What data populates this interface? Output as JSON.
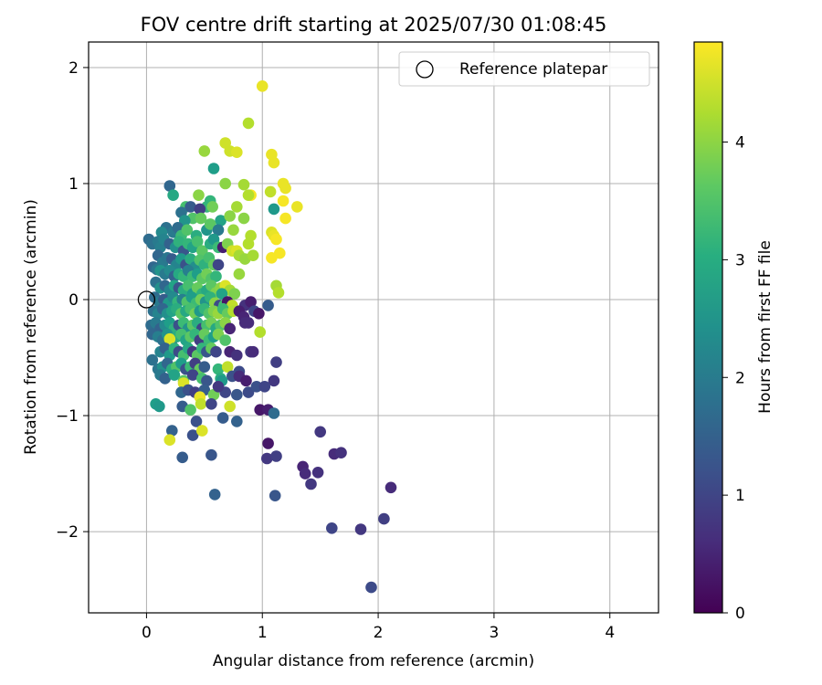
{
  "chart_data": {
    "type": "scatter",
    "title": "FOV centre drift starting at 2025/07/30 01:08:45",
    "xlabel": "Angular distance from reference (arcmin)",
    "ylabel": "Rotation from reference (arcmin)",
    "xlim": [
      -0.5,
      4.42
    ],
    "ylim": [
      -2.7,
      2.22
    ],
    "xticks": [
      0,
      1,
      2,
      3,
      4
    ],
    "xtick_labels": [
      "0",
      "1",
      "2",
      "3",
      "4"
    ],
    "yticks": [
      2,
      1,
      0,
      -1,
      -2
    ],
    "ytick_labels": [
      "2",
      "1",
      "0",
      "−1",
      "−2"
    ],
    "grid": true,
    "legend": {
      "placement": "top-right",
      "entries": [
        "Reference platepar"
      ]
    },
    "reference_point": {
      "name": "Reference platepar",
      "x": 0,
      "y": 0
    },
    "colorbar": {
      "label": "Hours from first FF file",
      "colormap": "viridis",
      "range": [
        0,
        4.85
      ],
      "ticks": [
        0,
        1,
        2,
        3,
        4
      ],
      "tick_labels": [
        "0",
        "1",
        "2",
        "3",
        "4"
      ]
    },
    "points": [
      [
        1.0,
        1.84,
        4.7
      ],
      [
        0.88,
        1.52,
        4.3
      ],
      [
        0.68,
        1.35,
        4.5
      ],
      [
        0.5,
        1.28,
        4.1
      ],
      [
        0.72,
        1.28,
        4.5
      ],
      [
        0.78,
        1.27,
        4.6
      ],
      [
        1.08,
        1.25,
        4.7
      ],
      [
        1.1,
        1.18,
        4.7
      ],
      [
        0.58,
        1.13,
        2.7
      ],
      [
        0.52,
        0.8,
        3.2
      ],
      [
        0.68,
        1.0,
        4.0
      ],
      [
        0.84,
        0.99,
        4.2
      ],
      [
        1.18,
        1.0,
        4.7
      ],
      [
        1.2,
        0.96,
        4.7
      ],
      [
        1.07,
        0.93,
        4.4
      ],
      [
        0.2,
        0.98,
        1.6
      ],
      [
        0.45,
        0.9,
        4.0
      ],
      [
        0.9,
        0.9,
        4.8
      ],
      [
        0.23,
        0.9,
        2.9
      ],
      [
        0.55,
        0.85,
        3.2
      ],
      [
        0.88,
        0.9,
        4.3
      ],
      [
        0.34,
        0.8,
        3.4
      ],
      [
        0.38,
        0.8,
        1.4
      ],
      [
        0.46,
        0.78,
        0.9
      ],
      [
        0.57,
        0.8,
        3.8
      ],
      [
        0.78,
        0.8,
        4.2
      ],
      [
        0.84,
        0.7,
        4.0
      ],
      [
        1.3,
        0.8,
        4.7
      ],
      [
        1.1,
        0.78,
        2.6
      ],
      [
        1.18,
        0.85,
        4.8
      ],
      [
        1.2,
        0.7,
        4.8
      ],
      [
        0.3,
        0.75,
        1.8
      ],
      [
        0.4,
        0.7,
        3.5
      ],
      [
        0.33,
        0.68,
        2.5
      ],
      [
        0.47,
        0.7,
        3.7
      ],
      [
        0.64,
        0.68,
        2.8
      ],
      [
        0.72,
        0.72,
        4.0
      ],
      [
        0.17,
        0.62,
        1.8
      ],
      [
        0.23,
        0.58,
        2.0
      ],
      [
        0.13,
        0.58,
        2.3
      ],
      [
        0.27,
        0.62,
        1.7
      ],
      [
        0.3,
        0.55,
        3.3
      ],
      [
        0.35,
        0.6,
        3.5
      ],
      [
        0.43,
        0.55,
        3.0
      ],
      [
        0.52,
        0.6,
        2.5
      ],
      [
        0.55,
        0.65,
        3.6
      ],
      [
        0.62,
        0.6,
        2.0
      ],
      [
        0.75,
        0.6,
        4.1
      ],
      [
        0.9,
        0.55,
        4.3
      ],
      [
        1.08,
        0.58,
        4.6
      ],
      [
        1.1,
        0.55,
        4.7
      ],
      [
        1.12,
        0.52,
        4.8
      ],
      [
        0.02,
        0.52,
        1.7
      ],
      [
        0.05,
        0.48,
        1.8
      ],
      [
        0.1,
        0.5,
        2.0
      ],
      [
        0.12,
        0.45,
        2.1
      ],
      [
        0.15,
        0.52,
        2.2
      ],
      [
        0.2,
        0.48,
        1.5
      ],
      [
        0.25,
        0.45,
        2.4
      ],
      [
        0.28,
        0.5,
        3.1
      ],
      [
        0.32,
        0.42,
        1.3
      ],
      [
        0.36,
        0.48,
        3.2
      ],
      [
        0.4,
        0.45,
        2.8
      ],
      [
        0.44,
        0.5,
        3.4
      ],
      [
        0.48,
        0.42,
        3.6
      ],
      [
        0.55,
        0.48,
        3.0
      ],
      [
        0.58,
        0.52,
        2.6
      ],
      [
        0.62,
        0.45,
        3.3
      ],
      [
        0.66,
        0.45,
        0.4
      ],
      [
        0.7,
        0.48,
        3.9
      ],
      [
        0.74,
        0.42,
        4.5
      ],
      [
        0.78,
        0.42,
        4.6
      ],
      [
        0.8,
        0.38,
        4.2
      ],
      [
        0.85,
        0.35,
        4.1
      ],
      [
        0.88,
        0.48,
        4.3
      ],
      [
        0.92,
        0.38,
        4.2
      ],
      [
        1.08,
        0.36,
        4.8
      ],
      [
        1.15,
        0.4,
        4.8
      ],
      [
        0.1,
        0.38,
        1.6
      ],
      [
        0.14,
        0.32,
        2.0
      ],
      [
        0.18,
        0.36,
        1.9
      ],
      [
        0.22,
        0.35,
        1.4
      ],
      [
        0.26,
        0.3,
        2.2
      ],
      [
        0.3,
        0.35,
        2.6
      ],
      [
        0.34,
        0.3,
        1.2
      ],
      [
        0.38,
        0.35,
        3.0
      ],
      [
        0.42,
        0.28,
        2.4
      ],
      [
        0.46,
        0.34,
        3.5
      ],
      [
        0.5,
        0.3,
        3.1
      ],
      [
        0.54,
        0.36,
        3.4
      ],
      [
        0.58,
        0.3,
        3.7
      ],
      [
        0.62,
        0.3,
        1.0
      ],
      [
        0.06,
        0.28,
        1.6
      ],
      [
        0.09,
        0.26,
        1.9
      ],
      [
        0.12,
        0.25,
        2.5
      ],
      [
        0.16,
        0.22,
        2.0
      ],
      [
        0.2,
        0.25,
        2.3
      ],
      [
        0.24,
        0.2,
        1.5
      ],
      [
        0.28,
        0.22,
        2.9
      ],
      [
        0.32,
        0.2,
        3.2
      ],
      [
        0.36,
        0.25,
        2.1
      ],
      [
        0.4,
        0.2,
        3.3
      ],
      [
        0.44,
        0.22,
        2.7
      ],
      [
        0.48,
        0.18,
        3.6
      ],
      [
        0.52,
        0.22,
        3.8
      ],
      [
        0.56,
        0.18,
        3.5
      ],
      [
        0.6,
        0.2,
        3.2
      ],
      [
        0.8,
        0.22,
        4.1
      ],
      [
        0.08,
        0.15,
        1.8
      ],
      [
        0.12,
        0.1,
        2.4
      ],
      [
        0.16,
        0.12,
        1.6
      ],
      [
        0.2,
        0.08,
        2.2
      ],
      [
        0.24,
        0.12,
        2.8
      ],
      [
        0.28,
        0.1,
        1.3
      ],
      [
        0.32,
        0.08,
        3.0
      ],
      [
        0.36,
        0.12,
        3.4
      ],
      [
        0.4,
        0.05,
        2.6
      ],
      [
        0.44,
        0.1,
        3.7
      ],
      [
        0.48,
        0.05,
        3.1
      ],
      [
        0.52,
        0.08,
        2.9
      ],
      [
        0.56,
        0.12,
        3.6
      ],
      [
        0.6,
        0.06,
        3.9
      ],
      [
        0.64,
        0.1,
        4.0
      ],
      [
        0.68,
        0.12,
        4.6
      ],
      [
        0.72,
        0.08,
        4.2
      ],
      [
        0.76,
        0.05,
        3.9
      ],
      [
        1.12,
        0.12,
        4.2
      ],
      [
        1.14,
        0.06,
        4.3
      ],
      [
        0.65,
        0.05,
        2.8
      ],
      [
        0.07,
        0.02,
        1.7
      ],
      [
        0.11,
        -0.02,
        2.0
      ],
      [
        0.15,
        0.0,
        1.4
      ],
      [
        0.19,
        -0.03,
        2.6
      ],
      [
        0.23,
        0.02,
        2.3
      ],
      [
        0.27,
        -0.02,
        3.2
      ],
      [
        0.31,
        0.0,
        2.1
      ],
      [
        0.35,
        -0.02,
        3.5
      ],
      [
        0.39,
        0.02,
        2.7
      ],
      [
        0.43,
        -0.03,
        3.3
      ],
      [
        0.47,
        0.0,
        3.8
      ],
      [
        0.51,
        -0.02,
        2.5
      ],
      [
        0.55,
        0.02,
        3.1
      ],
      [
        0.59,
        -0.03,
        4.0
      ],
      [
        0.63,
        -0.05,
        1.1
      ],
      [
        0.67,
        -0.05,
        3.4
      ],
      [
        0.7,
        -0.02,
        0.3
      ],
      [
        0.74,
        -0.05,
        4.4
      ],
      [
        0.85,
        -0.05,
        0.7
      ],
      [
        0.9,
        -0.02,
        0.4
      ],
      [
        0.93,
        -0.1,
        1.0
      ],
      [
        0.97,
        -0.12,
        0.3
      ],
      [
        1.05,
        -0.05,
        1.4
      ],
      [
        0.06,
        -0.1,
        1.8
      ],
      [
        0.1,
        -0.12,
        2.2
      ],
      [
        0.14,
        -0.08,
        1.6
      ],
      [
        0.18,
        -0.12,
        2.4
      ],
      [
        0.22,
        -0.1,
        2.8
      ],
      [
        0.26,
        -0.08,
        3.0
      ],
      [
        0.3,
        -0.12,
        3.6
      ],
      [
        0.34,
        -0.1,
        2.9
      ],
      [
        0.38,
        -0.08,
        3.4
      ],
      [
        0.42,
        -0.12,
        3.8
      ],
      [
        0.46,
        -0.1,
        2.6
      ],
      [
        0.5,
        -0.08,
        3.2
      ],
      [
        0.54,
        -0.12,
        3.5
      ],
      [
        0.58,
        -0.1,
        3.9
      ],
      [
        0.62,
        -0.12,
        4.1
      ],
      [
        0.66,
        -0.08,
        3.3
      ],
      [
        0.7,
        -0.12,
        3.7
      ],
      [
        0.75,
        -0.1,
        4.3
      ],
      [
        0.8,
        -0.1,
        0.4
      ],
      [
        0.84,
        -0.15,
        0.5
      ],
      [
        0.88,
        -0.2,
        0.6
      ],
      [
        0.04,
        -0.22,
        1.7
      ],
      [
        0.08,
        -0.2,
        2.0
      ],
      [
        0.12,
        -0.25,
        1.5
      ],
      [
        0.16,
        -0.22,
        2.3
      ],
      [
        0.2,
        -0.2,
        2.7
      ],
      [
        0.24,
        -0.25,
        3.1
      ],
      [
        0.28,
        -0.22,
        1.2
      ],
      [
        0.32,
        -0.2,
        3.3
      ],
      [
        0.36,
        -0.25,
        2.5
      ],
      [
        0.4,
        -0.22,
        3.6
      ],
      [
        0.44,
        -0.2,
        3.0
      ],
      [
        0.48,
        -0.25,
        1.0
      ],
      [
        0.52,
        -0.22,
        3.4
      ],
      [
        0.56,
        -0.2,
        3.8
      ],
      [
        0.6,
        -0.25,
        2.9
      ],
      [
        0.64,
        -0.22,
        3.5
      ],
      [
        0.68,
        -0.2,
        4.0
      ],
      [
        0.72,
        -0.25,
        0.5
      ],
      [
        0.85,
        -0.2,
        0.6
      ],
      [
        0.98,
        -0.28,
        4.3
      ],
      [
        0.05,
        -0.3,
        1.6
      ],
      [
        0.1,
        -0.32,
        2.1
      ],
      [
        0.14,
        -0.35,
        1.8
      ],
      [
        0.18,
        -0.3,
        2.5
      ],
      [
        0.22,
        -0.35,
        1.3
      ],
      [
        0.26,
        -0.32,
        3.0
      ],
      [
        0.3,
        -0.3,
        3.4
      ],
      [
        0.34,
        -0.35,
        2.8
      ],
      [
        0.38,
        -0.32,
        3.6
      ],
      [
        0.42,
        -0.3,
        3.2
      ],
      [
        0.46,
        -0.35,
        0.9
      ],
      [
        0.5,
        -0.3,
        3.7
      ],
      [
        0.54,
        -0.35,
        3.3
      ],
      [
        0.58,
        -0.32,
        2.7
      ],
      [
        0.62,
        -0.3,
        3.9
      ],
      [
        0.68,
        -0.35,
        3.5
      ],
      [
        0.2,
        -0.34,
        4.6
      ],
      [
        0.05,
        -0.52,
        1.8
      ],
      [
        0.12,
        -0.45,
        2.2
      ],
      [
        0.16,
        -0.42,
        1.5
      ],
      [
        0.2,
        -0.48,
        2.6
      ],
      [
        0.24,
        -0.42,
        3.1
      ],
      [
        0.28,
        -0.45,
        1.1
      ],
      [
        0.32,
        -0.48,
        3.4
      ],
      [
        0.36,
        -0.42,
        2.9
      ],
      [
        0.4,
        -0.45,
        0.8
      ],
      [
        0.44,
        -0.48,
        3.6
      ],
      [
        0.48,
        -0.42,
        3.2
      ],
      [
        0.52,
        -0.45,
        1.3
      ],
      [
        0.56,
        -0.42,
        3.7
      ],
      [
        0.6,
        -0.45,
        1.0
      ],
      [
        0.72,
        -0.45,
        0.5
      ],
      [
        0.78,
        -0.48,
        0.7
      ],
      [
        0.9,
        -0.45,
        0.8
      ],
      [
        0.92,
        -0.45,
        0.6
      ],
      [
        0.1,
        -0.6,
        1.9
      ],
      [
        0.14,
        -0.58,
        2.4
      ],
      [
        0.18,
        -0.55,
        1.6
      ],
      [
        0.22,
        -0.6,
        3.0
      ],
      [
        0.26,
        -0.58,
        3.5
      ],
      [
        0.3,
        -0.55,
        2.7
      ],
      [
        0.34,
        -0.6,
        1.2
      ],
      [
        0.38,
        -0.58,
        3.3
      ],
      [
        0.42,
        -0.55,
        0.9
      ],
      [
        0.46,
        -0.6,
        3.7
      ],
      [
        0.5,
        -0.58,
        1.4
      ],
      [
        0.62,
        -0.6,
        3.2
      ],
      [
        0.7,
        -0.58,
        4.4
      ],
      [
        0.8,
        -0.62,
        1.1
      ],
      [
        1.12,
        -0.54,
        0.9
      ],
      [
        0.12,
        -0.65,
        2.0
      ],
      [
        0.16,
        -0.68,
        1.5
      ],
      [
        0.24,
        -0.65,
        2.8
      ],
      [
        0.32,
        -0.7,
        3.6
      ],
      [
        0.4,
        -0.65,
        1.0
      ],
      [
        0.48,
        -0.68,
        3.4
      ],
      [
        0.52,
        -0.7,
        1.3
      ],
      [
        0.64,
        -0.68,
        3.0
      ],
      [
        0.74,
        -0.66,
        1.2
      ],
      [
        0.8,
        -0.66,
        0.6
      ],
      [
        0.86,
        -0.7,
        0.4
      ],
      [
        1.1,
        -0.7,
        0.8
      ],
      [
        0.32,
        -0.72,
        4.6
      ],
      [
        0.65,
        -0.7,
        2.6
      ],
      [
        0.3,
        -0.8,
        1.6
      ],
      [
        0.36,
        -0.78,
        1.2
      ],
      [
        0.42,
        -0.8,
        0.9
      ],
      [
        0.5,
        -0.78,
        1.4
      ],
      [
        0.58,
        -0.82,
        3.8
      ],
      [
        0.68,
        -0.8,
        1.0
      ],
      [
        0.78,
        -0.82,
        1.3
      ],
      [
        0.62,
        -0.75,
        0.8
      ],
      [
        0.88,
        -0.8,
        1.1
      ],
      [
        0.95,
        -0.75,
        1.2
      ],
      [
        1.02,
        -0.75,
        1.0
      ],
      [
        0.46,
        -0.84,
        4.7
      ],
      [
        0.08,
        -0.9,
        2.7
      ],
      [
        0.11,
        -0.92,
        2.6
      ],
      [
        0.31,
        -0.92,
        1.4
      ],
      [
        0.38,
        -0.95,
        3.5
      ],
      [
        0.47,
        -0.9,
        4.4
      ],
      [
        0.56,
        -0.9,
        1.0
      ],
      [
        0.72,
        -0.92,
        4.5
      ],
      [
        0.98,
        -0.95,
        0.3
      ],
      [
        1.05,
        -0.95,
        0.4
      ],
      [
        1.1,
        -0.98,
        1.7
      ],
      [
        0.43,
        -1.05,
        1.2
      ],
      [
        0.66,
        -1.02,
        1.4
      ],
      [
        0.78,
        -1.05,
        1.5
      ],
      [
        0.22,
        -1.13,
        1.5
      ],
      [
        0.4,
        -1.17,
        1.2
      ],
      [
        0.48,
        -1.13,
        4.6
      ],
      [
        1.05,
        -1.24,
        0.3
      ],
      [
        0.2,
        -1.21,
        4.6
      ],
      [
        1.5,
        -1.14,
        0.8
      ],
      [
        0.56,
        -1.34,
        1.3
      ],
      [
        0.31,
        -1.36,
        1.4
      ],
      [
        1.04,
        -1.37,
        0.8
      ],
      [
        1.12,
        -1.35,
        0.9
      ],
      [
        1.62,
        -1.33,
        0.6
      ],
      [
        1.68,
        -1.32,
        0.7
      ],
      [
        1.35,
        -1.44,
        0.5
      ],
      [
        1.37,
        -1.5,
        0.6
      ],
      [
        1.48,
        -1.49,
        0.7
      ],
      [
        1.42,
        -1.59,
        0.8
      ],
      [
        2.11,
        -1.62,
        0.6
      ],
      [
        0.59,
        -1.68,
        1.5
      ],
      [
        1.11,
        -1.69,
        1.3
      ],
      [
        1.6,
        -1.97,
        1.0
      ],
      [
        1.85,
        -1.98,
        0.8
      ],
      [
        2.05,
        -1.89,
        0.9
      ],
      [
        1.94,
        -2.48,
        1.1
      ]
    ]
  }
}
